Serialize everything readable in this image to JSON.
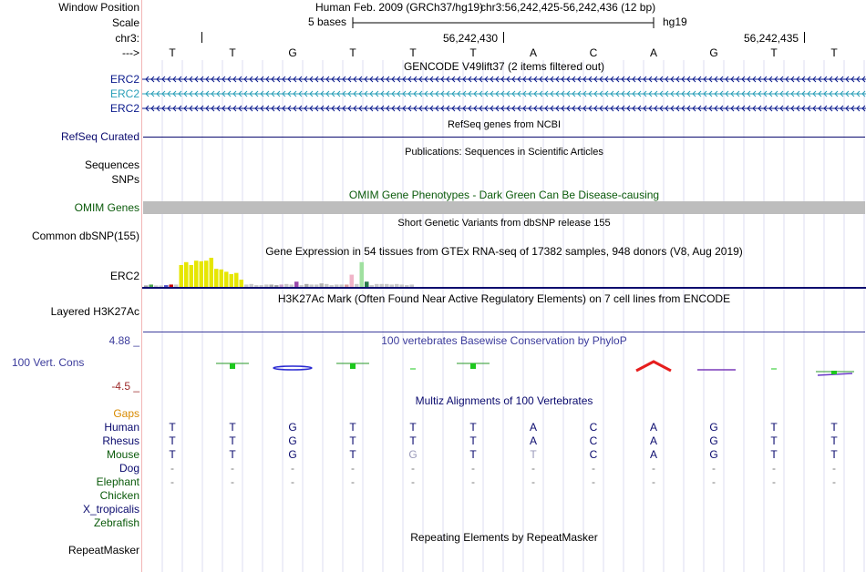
{
  "header": {
    "window_position_label": "Window Position",
    "assembly": "Human Feb. 2009 (GRCh37/hg19)",
    "position": "chr3:56,242,425-56,242,436 (12 bp)",
    "scale_label": "Scale",
    "scale_text": "5 bases",
    "scale_db": "hg19",
    "chrom_label": "chr3:",
    "coord1": "56,242,430",
    "coord2": "56,242,435",
    "strand_label": "--->"
  },
  "sequence": [
    "T",
    "T",
    "G",
    "T",
    "T",
    "T",
    "A",
    "C",
    "A",
    "G",
    "T",
    "T"
  ],
  "gencode": {
    "title": "GENCODE V49lift37 (2 items filtered out)",
    "rows": [
      {
        "label": "ERC2",
        "color": "#0a1a8c"
      },
      {
        "label": "ERC2",
        "color": "#2a9fb8"
      },
      {
        "label": "ERC2",
        "color": "#0a1a8c"
      }
    ]
  },
  "refseq": {
    "title": "RefSeq genes from NCBI",
    "label": "RefSeq Curated",
    "color": "#0a0a6e"
  },
  "publications": {
    "title": "Publications: Sequences in Scientific Articles",
    "label1": "Sequences",
    "label2": "SNPs"
  },
  "omim": {
    "title": "OMIM Gene Phenotypes - Dark Green Can Be Disease-causing",
    "label": "OMIM Genes",
    "color": "#0a5a0a"
  },
  "dbsnp": {
    "title": "Short Genetic Variants from dbSNP release 155",
    "label": "Common dbSNP(155)"
  },
  "gtex": {
    "title": "Gene Expression in 54 tissues from GTEx RNA-seq of 17382 samples, 948 donors (V8, Aug 2019)",
    "label": "ERC2",
    "values": [
      0.05,
      0.08,
      0.05,
      0.05,
      0.06,
      0.08,
      0.08,
      0.75,
      0.85,
      0.75,
      0.9,
      0.88,
      0.9,
      1.0,
      0.62,
      0.6,
      0.52,
      0.44,
      0.48,
      0.25,
      0.08,
      0.1,
      0.06,
      0.06,
      0.08,
      0.08,
      0.06,
      0.08,
      0.1,
      0.08,
      0.18,
      0.06,
      0.1,
      0.08,
      0.08,
      0.12,
      0.1,
      0.06,
      0.08,
      0.08,
      0.08,
      0.42,
      0.1,
      0.85,
      0.18,
      0.06,
      0.1,
      0.1,
      0.1,
      0.08,
      0.1,
      0.08,
      0.06,
      0.08
    ],
    "colors": [
      "#a0a0a0",
      "#4aa24a",
      "#c8c8c8",
      "#c8c8c8",
      "#5050c8",
      "#c80000",
      "#c8c8c8",
      "#e6e600",
      "#e6e600",
      "#e6e600",
      "#e6e600",
      "#e6e600",
      "#e6e600",
      "#e6e600",
      "#e6e600",
      "#e6e600",
      "#e6e600",
      "#e6e600",
      "#e6e600",
      "#e6e600",
      "#c8c8c8",
      "#c8c8c8",
      "#c8c8c8",
      "#c8c8c8",
      "#c8c8c8",
      "#aaaaaa",
      "#a0a0a0",
      "#c8a0c8",
      "#c8c8c8",
      "#c8c8c8",
      "#9a4aaa",
      "#c8c8c8",
      "#aaaaaa",
      "#c8c8c8",
      "#c8c8c8",
      "#b4b4b4",
      "#c8c8c8",
      "#c8c8c8",
      "#c8c8c8",
      "#c8c8c8",
      "#d8a0a0",
      "#f0b4c8",
      "#c8c8c8",
      "#a0e0a0",
      "#2a7a4a",
      "#c8c8c8",
      "#c8c8c8",
      "#c8c8c8",
      "#c8c8c8",
      "#c8c8c8",
      "#c8c8c8",
      "#c8c8c8",
      "#c8c8c8",
      "#c8c8c8"
    ]
  },
  "h3k27ac": {
    "title": "H3K27Ac Mark (Often Found Near Active Regulatory Elements) on 7 cell lines from ENCODE",
    "label": "Layered H3K27Ac"
  },
  "phylop": {
    "title": "100 vertebrates Basewise Conservation by PhyloP",
    "label": "100 Vert. Cons",
    "ymax": "4.88 _",
    "ymin": "-4.5 _",
    "color": "#3c3c9c"
  },
  "multiz": {
    "title": "Multiz Alignments of 100 Vertebrates",
    "gaps_label": "Gaps",
    "species": [
      {
        "name": "Human",
        "color": "#0a0a6e",
        "bases": [
          "T",
          "T",
          "G",
          "T",
          "T",
          "T",
          "A",
          "C",
          "A",
          "G",
          "T",
          "T"
        ]
      },
      {
        "name": "Rhesus",
        "color": "#0a0a6e",
        "bases": [
          "T",
          "T",
          "G",
          "T",
          "T",
          "T",
          "A",
          "C",
          "A",
          "G",
          "T",
          "T"
        ]
      },
      {
        "name": "Mouse",
        "color": "#0a5a0a",
        "bases": [
          "T",
          "T",
          "G",
          "T",
          "G",
          "T",
          "T",
          "C",
          "A",
          "G",
          "T",
          "T"
        ]
      },
      {
        "name": "Dog",
        "color": "#0a0a6e",
        "bases": [
          "-",
          "-",
          "-",
          "-",
          "-",
          "-",
          "-",
          "-",
          "-",
          "-",
          "-",
          "-"
        ]
      },
      {
        "name": "Elephant",
        "color": "#0a5a0a",
        "bases": [
          "-",
          "-",
          "-",
          "-",
          "-",
          "-",
          "-",
          "-",
          "-",
          "-",
          "-",
          "-"
        ]
      },
      {
        "name": "Chicken",
        "color": "#0a5a0a",
        "bases": []
      },
      {
        "name": "X_tropicalis",
        "color": "#0a0a6e",
        "bases": []
      },
      {
        "name": "Zebrafish",
        "color": "#0a5a0a",
        "bases": []
      }
    ]
  },
  "repeatmasker": {
    "title": "Repeating Elements by RepeatMasker",
    "label": "RepeatMasker"
  }
}
